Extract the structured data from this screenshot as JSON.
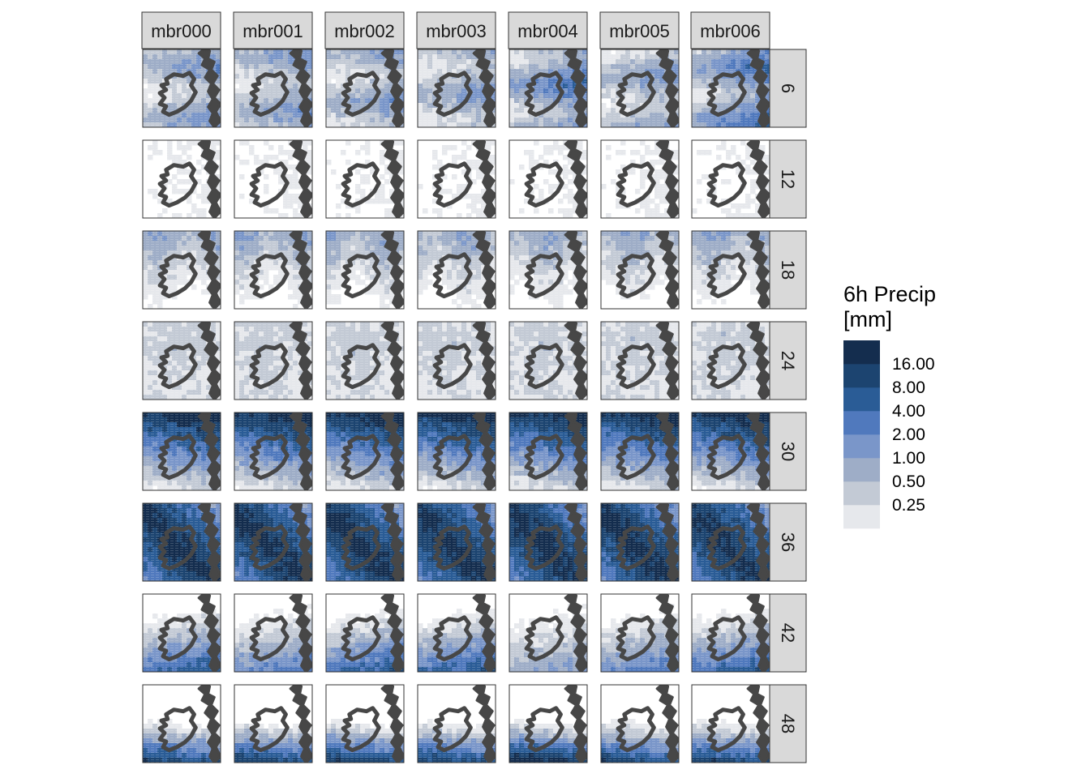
{
  "chart_data": {
    "type": "heatmap",
    "title": "",
    "layout": "facet grid: columns = ensemble member, rows = lead time (hours)",
    "members": [
      "mbr000",
      "mbr001",
      "mbr002",
      "mbr003",
      "mbr004",
      "mbr005",
      "mbr006"
    ],
    "lead_times": [
      "6",
      "12",
      "18",
      "24",
      "30",
      "36",
      "42",
      "48"
    ],
    "legend": {
      "title_lines": [
        "6h Precip",
        "[mm]"
      ],
      "breaks": [
        "16.00",
        "8.00",
        "4.00",
        "2.00",
        "1.00",
        "0.50",
        "0.25"
      ],
      "colors": [
        "#e6e8ec",
        "#c3cad5",
        "#9eadc7",
        "#7a96c9",
        "#5079bd",
        "#2a5c96",
        "#1c4470",
        "#142d4e"
      ]
    },
    "colors": {
      "coastline": "#474747",
      "panel_border": "#333333",
      "strip_fill": "#d9d9d9",
      "background": "#ffffff"
    },
    "intensity_by_lead_time": {
      "note": "approximate dominant colour class (0=none .. 8=>16mm) per panel, rows=lead times, cols=members",
      "levels": [
        [
          3,
          3,
          3,
          3,
          4,
          3,
          4
        ],
        [
          1,
          1,
          1,
          1,
          1,
          1,
          1
        ],
        [
          3,
          3,
          3,
          3,
          3,
          3,
          3
        ],
        [
          2,
          2,
          2,
          2,
          2,
          2,
          2
        ],
        [
          5,
          5,
          5,
          5,
          5,
          5,
          5
        ],
        [
          6,
          6,
          6,
          6,
          6,
          6,
          6
        ],
        [
          5,
          4,
          5,
          5,
          3,
          4,
          5
        ],
        [
          6,
          6,
          6,
          6,
          7,
          6,
          6
        ]
      ]
    }
  }
}
